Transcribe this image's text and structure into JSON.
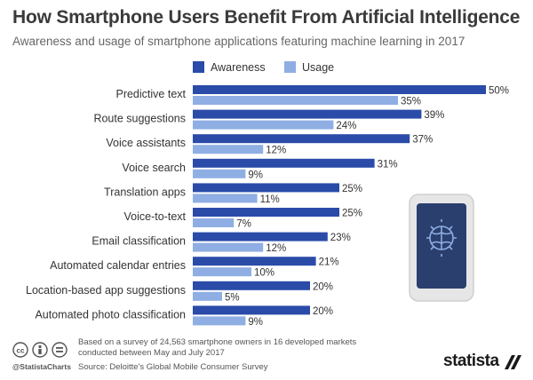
{
  "header": {
    "title": "How Smartphone Users Benefit From Artificial Intelligence",
    "subtitle": "Awareness and usage of smartphone applications featuring machine learning in 2017"
  },
  "colors": {
    "awareness": "#2a4ba8",
    "usage": "#8faee3"
  },
  "chart_data": {
    "type": "bar",
    "orientation": "horizontal",
    "value_suffix": "%",
    "xlim": [
      0,
      50
    ],
    "grid": false,
    "legend_placement": "top-center",
    "categories": [
      "Predictive text",
      "Route suggestions",
      "Voice assistants",
      "Voice search",
      "Translation apps",
      "Voice-to-text",
      "Email classification",
      "Automated calendar entries",
      "Location-based app suggestions",
      "Automated photo classification"
    ],
    "series": [
      {
        "name": "Awareness",
        "values": [
          50,
          39,
          37,
          31,
          25,
          25,
          23,
          21,
          20,
          20
        ]
      },
      {
        "name": "Usage",
        "values": [
          35,
          24,
          12,
          9,
          11,
          7,
          12,
          10,
          5,
          9
        ]
      }
    ]
  },
  "illustration": {
    "device_icon": "smartphone-icon",
    "screen_icon": "brain-icon"
  },
  "footer": {
    "license_icons": [
      "cc-icon",
      "attribution-icon",
      "no-derivatives-icon"
    ],
    "handle": "@StatistaCharts",
    "note": "Based on a survey of 24,563 smartphone owners in 16 developed markets conducted between May and July 2017",
    "source": "Source: Deloitte's Global Mobile Consumer Survey",
    "brand": "statista"
  }
}
